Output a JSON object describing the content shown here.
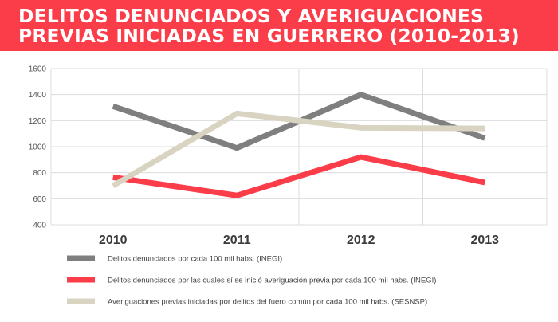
{
  "title": {
    "line1": "DELITOS DENUNCIADOS Y AVERIGUACIONES",
    "line2": "PREVIAS INICIADAS EN GUERRERO (2010-2013)"
  },
  "chart_data": {
    "type": "line",
    "categories": [
      "2010",
      "2011",
      "2012",
      "2013"
    ],
    "ylim": [
      400,
      1600
    ],
    "yticks": [
      400,
      600,
      800,
      1000,
      1200,
      1400,
      1600
    ],
    "grid": true,
    "legend_position": "bottom",
    "series": [
      {
        "name": "Delitos denunciados por cada 100 mil habs. (INEGI)",
        "color": "#7f7f7f",
        "values": [
          1310,
          990,
          1400,
          1065
        ]
      },
      {
        "name": "Delitos denunciados por las cuales sí se inició averiguación previa por cada 100 mil habs. (INEGI)",
        "color": "#fb3d4a",
        "values": [
          765,
          625,
          920,
          725
        ]
      },
      {
        "name": "Averiguaciones previas iniciadas por delitos del fuero común por cada 100 mil habs. (SESNSP)",
        "color": "#d9d4c2",
        "values": [
          700,
          1255,
          1145,
          1140
        ]
      }
    ]
  }
}
